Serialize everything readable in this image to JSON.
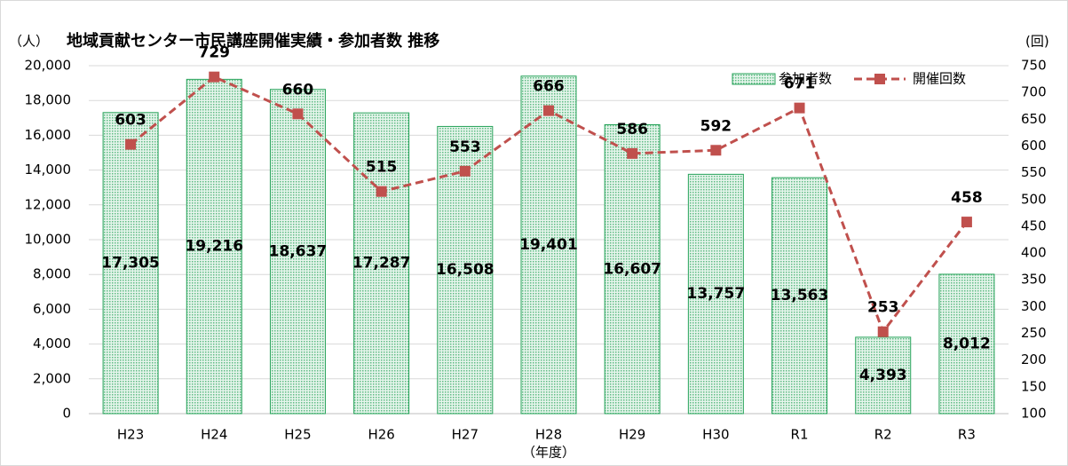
{
  "chart_data": {
    "type": "bar",
    "title": "地域貢献センター市民講座開催実績・参加者数 推移",
    "y_label": "（人）",
    "y2_label": "(回)",
    "x_label": "（年度）",
    "categories": [
      "H23",
      "H24",
      "H25",
      "H26",
      "H27",
      "H28",
      "H29",
      "H30",
      "R1",
      "R2",
      "R3"
    ],
    "series": [
      {
        "name": "参加者数",
        "color": "#27a35a",
        "type": "bar",
        "values": [
          17305,
          19216,
          18637,
          17287,
          16508,
          19401,
          16607,
          13757,
          13563,
          4393,
          8012
        ],
        "value_labels": [
          "17,305",
          "19,216",
          "18,637",
          "17,287",
          "16,508",
          "19,401",
          "16,607",
          "13,757",
          "13,563",
          "4,393",
          "8,012"
        ]
      },
      {
        "name": "開催回数",
        "color": "#c0504d",
        "type": "line",
        "axis": "y2",
        "values": [
          603,
          729,
          660,
          515,
          553,
          666,
          586,
          592,
          671,
          253,
          458
        ]
      }
    ],
    "ylim": [
      0,
      20000
    ],
    "yticks": [
      0,
      {
        "value": 2000,
        "label": "2,000"
      },
      {
        "value": 4000,
        "label": "4,000"
      },
      {
        "value": 6000,
        "label": "6,000"
      },
      {
        "value": 8000,
        "label": "8,000"
      },
      {
        "value": 10000,
        "label": "10,000"
      },
      {
        "value": 12000,
        "label": "12,000"
      },
      {
        "value": 14000,
        "label": "14,000"
      },
      {
        "value": 16000,
        "label": "16,000"
      },
      {
        "value": 18000,
        "label": "18,000"
      },
      {
        "value": 20000,
        "label": "20,000"
      }
    ],
    "y2lim": [
      100,
      750
    ],
    "y2ticks": [
      100,
      150,
      200,
      250,
      300,
      350,
      400,
      450,
      500,
      550,
      600,
      650,
      700,
      750
    ],
    "grid": true,
    "legend": "top-right"
  }
}
